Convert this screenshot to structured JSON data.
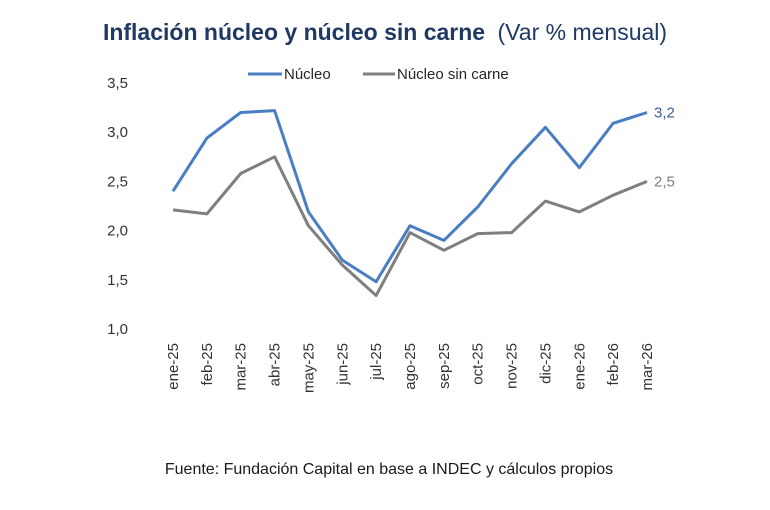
{
  "chart_data": {
    "type": "line",
    "title": "Inflación núcleo y núcleo sin carne",
    "subtitle": "(Var % mensual)",
    "xlabel": "",
    "ylabel": "",
    "categories": [
      "ene-25",
      "feb-25",
      "mar-25",
      "abr-25",
      "may-25",
      "jun-25",
      "jul-25",
      "ago-25",
      "sep-25",
      "oct-25",
      "nov-25",
      "dic-25",
      "ene-26",
      "feb-26",
      "mar-26"
    ],
    "ylim": [
      1.0,
      3.5
    ],
    "yticks": [
      1.0,
      1.5,
      2.0,
      2.5,
      3.0,
      3.5
    ],
    "ytick_labels": [
      "1,0",
      "1,5",
      "2,0",
      "2,5",
      "3,0",
      "3,5"
    ],
    "grid": false,
    "legend_position": "top-center",
    "series": [
      {
        "name": "Núcleo",
        "color": "#4A7EC2",
        "values": [
          2.4,
          2.94,
          3.2,
          3.22,
          2.19,
          1.7,
          1.48,
          2.05,
          1.9,
          2.24,
          2.68,
          3.05,
          2.64,
          3.09,
          3.2
        ],
        "end_label": "3,2",
        "end_label_color": "#3B5E96"
      },
      {
        "name": "Núcleo sin carne",
        "color": "#7F7F7F",
        "values": [
          2.21,
          2.17,
          2.58,
          2.75,
          2.05,
          1.65,
          1.34,
          1.98,
          1.8,
          1.97,
          1.98,
          2.3,
          2.19,
          2.36,
          2.5
        ],
        "end_label": "2,5",
        "end_label_color": "#7F7F7F"
      }
    ],
    "source": "Fuente: Fundación Capital en base a INDEC y cálculos propios"
  }
}
